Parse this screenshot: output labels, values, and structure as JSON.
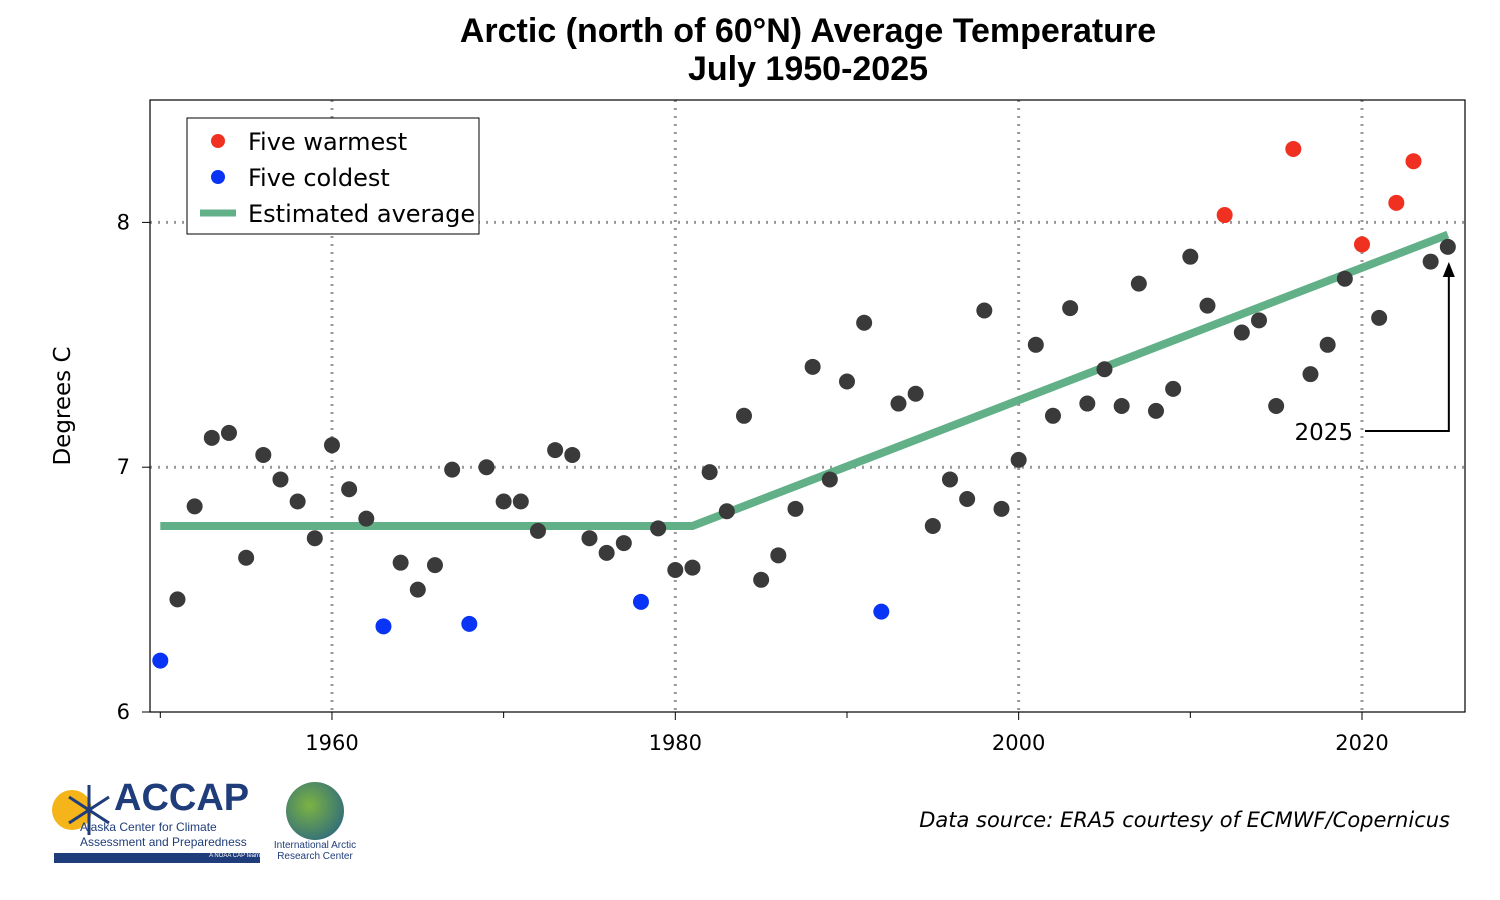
{
  "chart_data": {
    "type": "scatter",
    "title": "Arctic (north of 60°N) Average Temperature",
    "subtitle": "July 1950-2025",
    "xlabel": "",
    "ylabel": "Degrees C",
    "xlim": [
      1949.4,
      2026
    ],
    "ylim": [
      6,
      8.5
    ],
    "xticks": [
      1960,
      1980,
      2000,
      2020
    ],
    "xminor": [
      1950,
      1970,
      1990,
      2010
    ],
    "yticks": [
      6,
      7,
      8
    ],
    "grid": "dotted at major ticks",
    "legend": {
      "placement": "top-left",
      "entries": [
        "Five warmest",
        "Five coldest",
        "Estimated average"
      ]
    },
    "colors": {
      "normal": "#3a3a3a",
      "warm": "#f03020",
      "cold": "#0a34f5",
      "trend": "#62b088"
    },
    "x": [
      1950,
      1951,
      1952,
      1953,
      1954,
      1955,
      1956,
      1957,
      1958,
      1959,
      1960,
      1961,
      1962,
      1963,
      1964,
      1965,
      1966,
      1967,
      1968,
      1969,
      1970,
      1971,
      1972,
      1973,
      1974,
      1975,
      1976,
      1977,
      1978,
      1979,
      1980,
      1981,
      1982,
      1983,
      1984,
      1985,
      1986,
      1987,
      1988,
      1989,
      1990,
      1991,
      1992,
      1993,
      1994,
      1995,
      1996,
      1997,
      1998,
      1999,
      2000,
      2001,
      2002,
      2003,
      2004,
      2005,
      2006,
      2007,
      2008,
      2009,
      2010,
      2011,
      2012,
      2013,
      2014,
      2015,
      2016,
      2017,
      2018,
      2019,
      2020,
      2021,
      2022,
      2023,
      2024,
      2025
    ],
    "y": [
      6.21,
      6.46,
      6.84,
      7.12,
      7.14,
      6.63,
      7.05,
      6.95,
      6.86,
      6.71,
      7.09,
      6.91,
      6.79,
      6.35,
      6.61,
      6.5,
      6.6,
      6.99,
      6.36,
      7.0,
      6.86,
      6.86,
      6.74,
      7.07,
      7.05,
      6.71,
      6.65,
      6.69,
      6.45,
      6.75,
      6.58,
      6.59,
      6.98,
      6.82,
      7.21,
      6.54,
      6.64,
      6.83,
      7.41,
      6.95,
      7.35,
      7.59,
      6.41,
      7.26,
      7.3,
      6.76,
      6.95,
      6.87,
      7.64,
      6.83,
      7.03,
      7.5,
      7.21,
      7.65,
      7.26,
      7.4,
      7.25,
      7.75,
      7.23,
      7.32,
      7.86,
      7.66,
      8.03,
      7.55,
      7.6,
      7.25,
      8.3,
      7.38,
      7.5,
      7.77,
      7.91,
      7.61,
      8.08,
      8.25,
      7.84,
      7.9
    ],
    "warmest_years": [
      2012,
      2016,
      2020,
      2022,
      2023
    ],
    "coldest_years": [
      1950,
      1963,
      1968,
      1978,
      1992
    ],
    "trend": {
      "x": [
        1950,
        1981,
        2025
      ],
      "y": [
        6.76,
        6.76,
        7.95
      ]
    },
    "annotation": {
      "text": "2025",
      "year": 2025
    }
  },
  "source": "Data source: ERA5 courtesy of ECMWF/Copernicus",
  "logos": {
    "accap_name": "ACCAP",
    "accap_full1": "Alaska Center for Climate",
    "accap_full2": "Assessment and Preparedness",
    "accap_tag": "A NOAA CAP team",
    "iarc1": "International Arctic",
    "iarc2": "Research Center"
  }
}
